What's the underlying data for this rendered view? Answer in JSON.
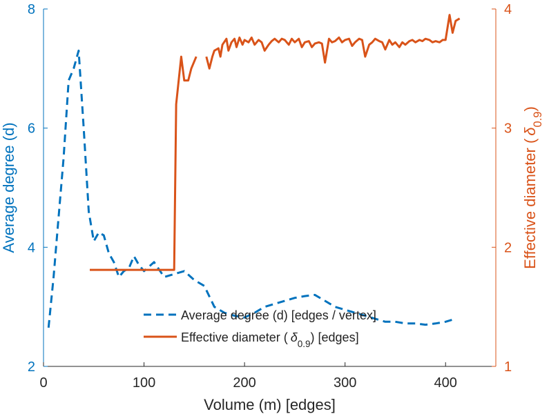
{
  "chart_data": {
    "type": "line",
    "xlabel": "Volume (m) [edges]",
    "ylabel_left": "Average degree (d)",
    "ylabel_right_parts": [
      "Effective diameter (",
      "δ",
      "0.9",
      ")"
    ],
    "xlim": [
      0,
      450
    ],
    "ylim_left": [
      2,
      8
    ],
    "ylim_right": [
      1,
      4
    ],
    "xticks": [
      0,
      100,
      200,
      300,
      400
    ],
    "yticks_left": [
      2,
      4,
      6,
      8
    ],
    "yticks_right": [
      1,
      2,
      3,
      4
    ],
    "colors": {
      "left": "#0072BD",
      "right": "#D95319",
      "axis_dark": "#262626"
    },
    "legend": {
      "position": "bottom-right",
      "entries": [
        {
          "parts": [
            "Average degree (d) [edges / vertex]"
          ],
          "style": "dashed",
          "color": "#0072BD"
        },
        {
          "parts": [
            "Effective diameter (",
            "δ",
            "0.9",
            ") [edges]"
          ],
          "style": "solid",
          "color": "#D95319"
        }
      ]
    },
    "series": [
      {
        "name": "Average degree (d) [edges / vertex]",
        "axis": "left",
        "style": "dashed",
        "x": [
          5,
          10,
          15,
          20,
          25,
          30,
          35,
          40,
          45,
          50,
          55,
          60,
          65,
          70,
          75,
          80,
          85,
          90,
          95,
          100,
          110,
          120,
          130,
          140,
          150,
          160,
          170,
          180,
          190,
          200,
          210,
          220,
          230,
          240,
          250,
          260,
          270,
          280,
          290,
          300,
          310,
          320,
          330,
          340,
          350,
          360,
          370,
          380,
          390,
          400,
          410
        ],
        "values": [
          2.65,
          3.5,
          4.5,
          5.5,
          6.8,
          7.0,
          7.3,
          6.0,
          4.6,
          4.1,
          4.25,
          4.2,
          3.9,
          3.75,
          3.5,
          3.6,
          3.65,
          3.85,
          3.7,
          3.6,
          3.75,
          3.5,
          3.55,
          3.6,
          3.45,
          3.35,
          3.0,
          2.9,
          2.85,
          2.82,
          2.9,
          3.0,
          3.05,
          3.1,
          3.15,
          3.18,
          3.2,
          3.1,
          3.0,
          2.95,
          2.9,
          2.85,
          2.8,
          2.75,
          2.75,
          2.72,
          2.72,
          2.7,
          2.72,
          2.75,
          2.8
        ]
      },
      {
        "name": "Effective diameter (δ0.9) [edges]",
        "axis": "right",
        "style": "solid",
        "segments": [
          {
            "x": [
              46,
              130,
              132,
              137,
              140,
              144,
              147,
              152
            ],
            "values": [
              1.81,
              1.81,
              3.2,
              3.6,
              3.4,
              3.4,
              3.5,
              3.6
            ]
          },
          {
            "x": [
              162,
              165,
              168,
              170,
              174,
              176,
              178,
              182,
              184,
              187,
              190,
              192,
              195,
              198,
              200,
              204,
              207,
              210,
              214,
              217,
              220,
              224,
              227,
              230,
              234,
              237,
              240,
              244,
              247,
              250,
              254,
              257,
              260,
              264,
              267,
              270,
              274,
              277,
              280,
              284,
              287,
              290,
              294,
              297,
              300,
              304,
              307,
              310,
              314,
              317,
              320,
              324,
              327,
              330,
              334,
              337,
              340,
              344,
              347,
              350,
              354,
              357,
              360,
              364,
              367,
              370,
              374,
              377,
              380,
              384,
              387,
              390,
              394,
              397,
              400,
              404,
              407,
              410,
              414
            ],
            "values": [
              3.6,
              3.5,
              3.6,
              3.65,
              3.67,
              3.6,
              3.7,
              3.75,
              3.65,
              3.72,
              3.75,
              3.68,
              3.76,
              3.7,
              3.74,
              3.72,
              3.76,
              3.7,
              3.74,
              3.72,
              3.65,
              3.7,
              3.73,
              3.75,
              3.72,
              3.75,
              3.74,
              3.7,
              3.75,
              3.72,
              3.75,
              3.68,
              3.72,
              3.73,
              3.68,
              3.71,
              3.72,
              3.71,
              3.55,
              3.75,
              3.72,
              3.73,
              3.76,
              3.72,
              3.74,
              3.75,
              3.69,
              3.72,
              3.75,
              3.74,
              3.6,
              3.7,
              3.72,
              3.75,
              3.73,
              3.72,
              3.66,
              3.74,
              3.7,
              3.72,
              3.68,
              3.72,
              3.7,
              3.73,
              3.74,
              3.72,
              3.74,
              3.73,
              3.75,
              3.74,
              3.72,
              3.73,
              3.72,
              3.74,
              3.74,
              3.95,
              3.8,
              3.9,
              3.92
            ]
          }
        ]
      }
    ]
  }
}
